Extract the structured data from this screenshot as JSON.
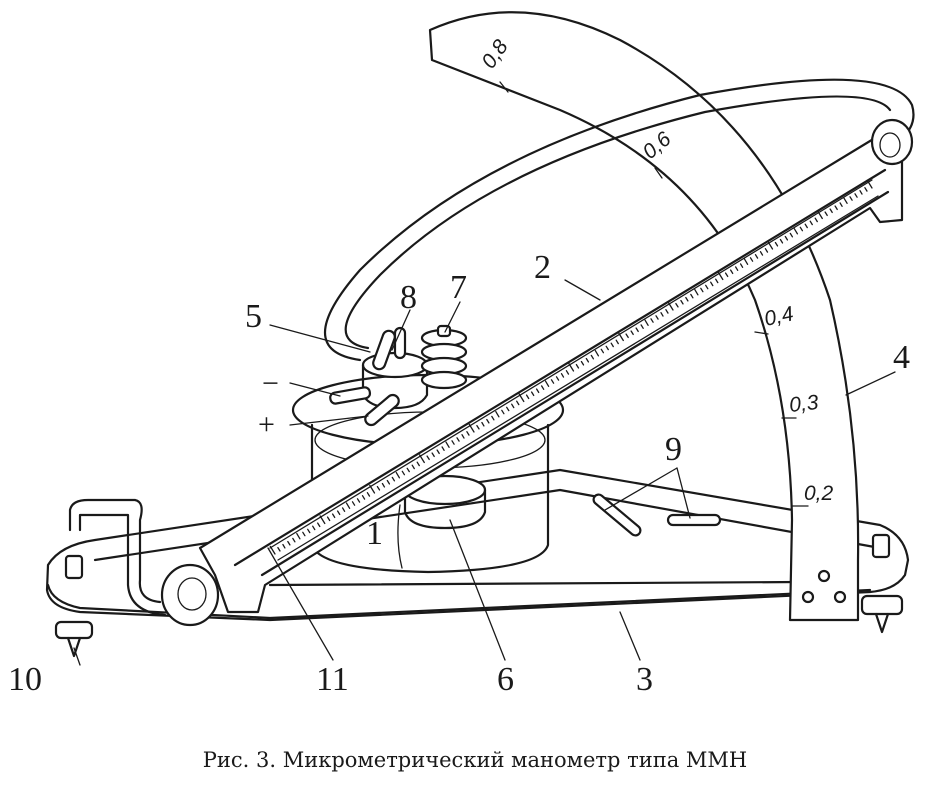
{
  "caption": "Рис. 3. Микрометрический манометр типа ММН",
  "callouts": {
    "c1": "1",
    "c2": "2",
    "c3": "3",
    "c4": "4",
    "c5": "5",
    "c6": "6",
    "c7": "7",
    "c8": "8",
    "c9": "9",
    "c10": "10",
    "c11": "11"
  },
  "signs": {
    "minus": "−",
    "plus": "+"
  },
  "arc_scale": [
    "0,8",
    "0,6",
    "0,4",
    "0,3",
    "0,2"
  ],
  "colors": {
    "ink": "#1a1a1a",
    "paper": "#ffffff"
  }
}
